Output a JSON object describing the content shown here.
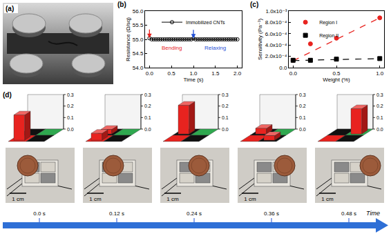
{
  "figure_a": {
    "title": "(a)"
  },
  "chart_data": [
    {
      "title": "(b)",
      "type": "line",
      "xlabel": "Time (s)",
      "ylabel": "Resistance (Ω/sq)",
      "x": [
        0,
        0.05,
        0.1,
        0.15,
        0.2,
        0.25,
        0.3,
        0.35,
        0.4,
        0.45,
        0.5,
        0.55,
        0.6,
        0.65,
        0.7,
        0.75,
        0.8,
        0.85,
        0.9,
        0.95,
        1,
        1.05,
        1.1,
        1.15,
        1.2,
        1.25,
        1.3,
        1.35,
        1.4,
        1.45,
        1.5,
        1.55,
        1.6,
        1.65,
        1.7,
        1.75,
        1.8,
        1.85,
        1.9,
        1.95,
        2
      ],
      "series": [
        {
          "name": "Immobilized CNTs",
          "color": "#000000",
          "marker": "open circle",
          "values": [
            55.04,
            55.0,
            55.0,
            55.0,
            55.0,
            55.0,
            55.0,
            55.0,
            55.0,
            55.0,
            55.0,
            55.0,
            55.0,
            55.0,
            55.0,
            55.0,
            55.0,
            55.0,
            55.0,
            55.0,
            55.03,
            55.0,
            55.0,
            55.0,
            55.0,
            55.0,
            55.0,
            55.0,
            55.0,
            55.0,
            55.0,
            55.0,
            55.0,
            55.0,
            55.0,
            55.0,
            55.0,
            55.0,
            55.0,
            55.0,
            55.0
          ]
        }
      ],
      "xlim": [
        -0.1,
        2.1
      ],
      "xticks": [
        {
          "value": 0,
          "label": "0.0"
        },
        0.5,
        {
          "value": 1,
          "label": "1.0"
        },
        1.5,
        {
          "value": 2,
          "label": "2.0"
        }
      ],
      "ylim": [
        54,
        56
      ],
      "yticks": [
        {
          "value": 54,
          "label": "54.0"
        },
        54.5,
        {
          "value": 55,
          "label": "55.0"
        },
        55.5,
        {
          "value": 56,
          "label": "56.0"
        }
      ],
      "annotations": [
        {
          "text": "Bending",
          "x": 0.5,
          "y": 54.7,
          "color": "#e8231f"
        },
        {
          "text": "Relaxing",
          "x": 1.5,
          "y": 54.7,
          "color": "#1f4fd6"
        }
      ],
      "events": [
        {
          "x": 0,
          "y": 55.04,
          "color": "#e8231f"
        },
        {
          "x": 1,
          "y": 55.03,
          "color": "#1f4fd6"
        }
      ],
      "legend": "top",
      "grid": false
    },
    {
      "title": "(c)",
      "type": "scatter",
      "xlabel": "Weight (%)",
      "ylabel": "Sensitivity (Pa⁻¹)",
      "x": [
        0,
        0.2,
        0.5,
        1.0
      ],
      "series": [
        {
          "name": "Region I",
          "color": "#e8231f",
          "marker": "circle",
          "line_style": "dash",
          "values": [
            0.00013,
            0.00042,
            0.00052,
            0.00088
          ],
          "fit": [
            0.00012,
            0.00088
          ]
        },
        {
          "name": "Region II",
          "color": "#000000",
          "marker": "square",
          "line_style": "dash",
          "values": [
            0.00013,
            0.00013,
            0.00015,
            0.00016
          ],
          "fit": [
            0.000125,
            0.00016
          ]
        }
      ],
      "xlim": [
        -0.05,
        1.05
      ],
      "xticks": [
        {
          "value": 0,
          "label": "0.0"
        },
        0.5,
        {
          "value": 1,
          "label": "1.0"
        }
      ],
      "ylim": [
        0,
        0.001
      ],
      "yticks": [
        {
          "value": 0,
          "label": "0.0"
        },
        {
          "value": 0.0002,
          "label": "2.0x10⁻⁴"
        },
        {
          "value": 0.0004,
          "label": "4.0x10⁻⁴"
        },
        {
          "value": 0.0006,
          "label": "6.0x10⁻⁴"
        },
        {
          "value": 0.0008,
          "label": "8.0x10⁻⁴"
        },
        {
          "value": 0.001,
          "label": "1.0x10⁻³"
        }
      ],
      "legend": "top left",
      "grid": false
    },
    {
      "title": "(d)",
      "type": "bar3d",
      "color": "#e8231f",
      "colors": [
        [
          "#111111",
          "#2fa84f"
        ],
        [
          "#e8231f",
          "#111111"
        ]
      ],
      "zlim": [
        0,
        0.3
      ],
      "zticks": [
        {
          "value": 0,
          "label": "0.0"
        },
        0.1,
        0.2,
        0.3
      ],
      "panels": [
        {
          "time": "0.0 s",
          "values": [
            [
              0,
              0
            ],
            [
              0.22,
              0
            ]
          ]
        },
        {
          "time": "0.12 s",
          "values": [
            [
              0.04,
              0
            ],
            [
              0.06,
              0
            ]
          ]
        },
        {
          "time": "0.24 s",
          "values": [
            [
              0.25,
              0
            ],
            [
              0,
              0
            ]
          ]
        },
        {
          "time": "0.36 s",
          "values": [
            [
              0.05,
              0
            ],
            [
              0,
              0.04
            ]
          ]
        },
        {
          "time": "0.48 s",
          "values": [
            [
              0,
              0.22
            ],
            [
              0,
              0
            ]
          ]
        }
      ],
      "scale_label": "1 cm",
      "time_label": "Time"
    }
  ]
}
